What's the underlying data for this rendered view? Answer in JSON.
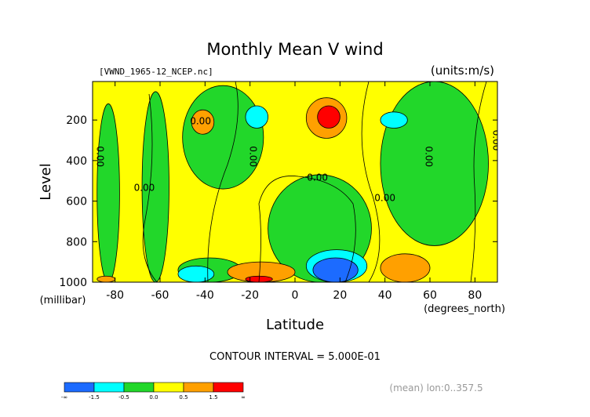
{
  "chart_data": {
    "type": "heatmap",
    "title": "Monthly Mean V wind",
    "subtitle_left": "[VWND_1965-12_NCEP.nc]",
    "subtitle_right": "(units:m/s)",
    "xlabel": "Latitude",
    "x_unit": "(degrees_north)",
    "ylabel": "Level",
    "y_unit": "(millibar)",
    "xlim": [
      -90,
      90
    ],
    "ylim": [
      1000,
      10
    ],
    "x_ticks": [
      "-80",
      "-60",
      "-40",
      "-20",
      "0",
      "20",
      "40",
      "60",
      "80"
    ],
    "x_tick_values": [
      -80,
      -60,
      -40,
      -20,
      0,
      20,
      40,
      60,
      80
    ],
    "y_ticks": [
      "200",
      "400",
      "600",
      "800",
      "1000"
    ],
    "y_tick_values": [
      200,
      400,
      600,
      800,
      1000
    ],
    "contour_interval_text": "CONTOUR INTERVAL = 5.000E-01",
    "contour_label": "0.00",
    "footer_note": "(mean) lon:0..357.5",
    "legend": {
      "labels": [
        "-∞",
        "-1.5",
        "-0.5",
        "0.0",
        "0.5",
        "1.5",
        "∞"
      ],
      "colors": [
        "#1c6bff",
        "#00ffff",
        "#22d72a",
        "#ffff00",
        "#ffa000",
        "#ff0000"
      ]
    },
    "background_level": "0.0 to 0.5",
    "regions": [
      {
        "level": "-0.5 to 0.0",
        "lat": [
          -88,
          -78
        ],
        "p": [
          120,
          1000
        ]
      },
      {
        "level": "-0.5 to 0.0",
        "lat": [
          -68,
          -56
        ],
        "p": [
          60,
          1000
        ]
      },
      {
        "level": "-0.5 to 0.0",
        "lat": [
          -50,
          -14
        ],
        "p": [
          30,
          540
        ]
      },
      {
        "level": "-0.5 to 0.0",
        "lat": [
          -12,
          34
        ],
        "p": [
          470,
          1000
        ]
      },
      {
        "level": "-0.5 to 0.0",
        "lat": [
          38,
          86
        ],
        "p": [
          10,
          820
        ]
      },
      {
        "level": "-0.5 to 0.0",
        "lat": [
          -52,
          -24
        ],
        "p": [
          880,
          1000
        ]
      },
      {
        "level": "-1.5 to -0.5",
        "lat": [
          -22,
          -12
        ],
        "p": [
          130,
          240
        ]
      },
      {
        "level": "-1.5 to -0.5",
        "lat": [
          -52,
          -36
        ],
        "p": [
          920,
          1000
        ]
      },
      {
        "level": "-1.5 to -0.5",
        "lat": [
          38,
          50
        ],
        "p": [
          160,
          240
        ]
      },
      {
        "level": "-1.5 to -0.5",
        "lat": [
          5,
          32
        ],
        "p": [
          840,
          1000
        ]
      },
      {
        "level": "< -1.5",
        "lat": [
          8,
          28
        ],
        "p": [
          880,
          1000
        ]
      },
      {
        "level": "0.5 to 1.5",
        "lat": [
          -46,
          -36
        ],
        "p": [
          150,
          270
        ]
      },
      {
        "level": "0.5 to 1.5",
        "lat": [
          5,
          23
        ],
        "p": [
          90,
          290
        ]
      },
      {
        "level": "0.5 to 1.5",
        "lat": [
          -30,
          0
        ],
        "p": [
          900,
          1000
        ]
      },
      {
        "level": "0.5 to 1.5",
        "lat": [
          38,
          60
        ],
        "p": [
          860,
          1000
        ]
      },
      {
        "level": "0.5 to 1.5",
        "lat": [
          -88,
          -80
        ],
        "p": [
          970,
          1000
        ]
      },
      {
        "level": "> 1.5",
        "lat": [
          10,
          20
        ],
        "p": [
          130,
          240
        ]
      },
      {
        "level": "> 1.5",
        "lat": [
          -22,
          -10
        ],
        "p": [
          970,
          1000
        ]
      }
    ]
  }
}
